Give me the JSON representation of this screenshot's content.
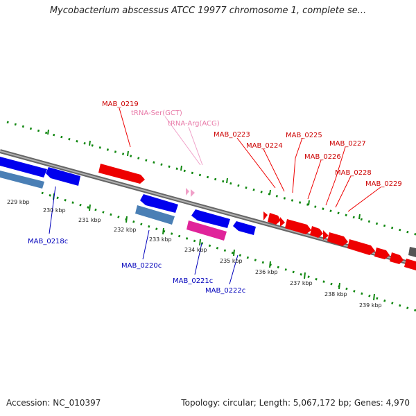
{
  "title": "Mycobacterium abscessus ATCC 19977 chromosome 1, complete se...",
  "footer": {
    "accession": "Accession: NC_010397",
    "summary": "Topology: circular; Length: 5,067,172 bp; Genes: 4,970"
  },
  "colors": {
    "forward_gene": "#ff0000",
    "reverse_gene": "#0000ee",
    "reverse_cds": "#4a7fb5",
    "rna_gene": "#e0249a",
    "trna": "#f0a0c8",
    "backbone": "#808080",
    "tick": "#118811"
  },
  "ticks": [
    "229 kbp",
    "230 kbp",
    "231 kbp",
    "232 kbp",
    "233 kbp",
    "234 kbp",
    "235 kbp",
    "236 kbp",
    "237 kbp",
    "238 kbp",
    "239 kbp"
  ],
  "labels": {
    "forward": [
      "MAB_0219",
      "MAB_0223",
      "MAB_0224",
      "MAB_0225",
      "MAB_0226",
      "MAB_0227",
      "MAB_0228",
      "MAB_0229"
    ],
    "trna": [
      "tRNA-Ser(GCT)",
      "tRNA-Arg(ACG)"
    ],
    "reverse": [
      "MAB_0218c",
      "MAB_0220c",
      "MAB_0221c",
      "MAB_0222c"
    ]
  }
}
